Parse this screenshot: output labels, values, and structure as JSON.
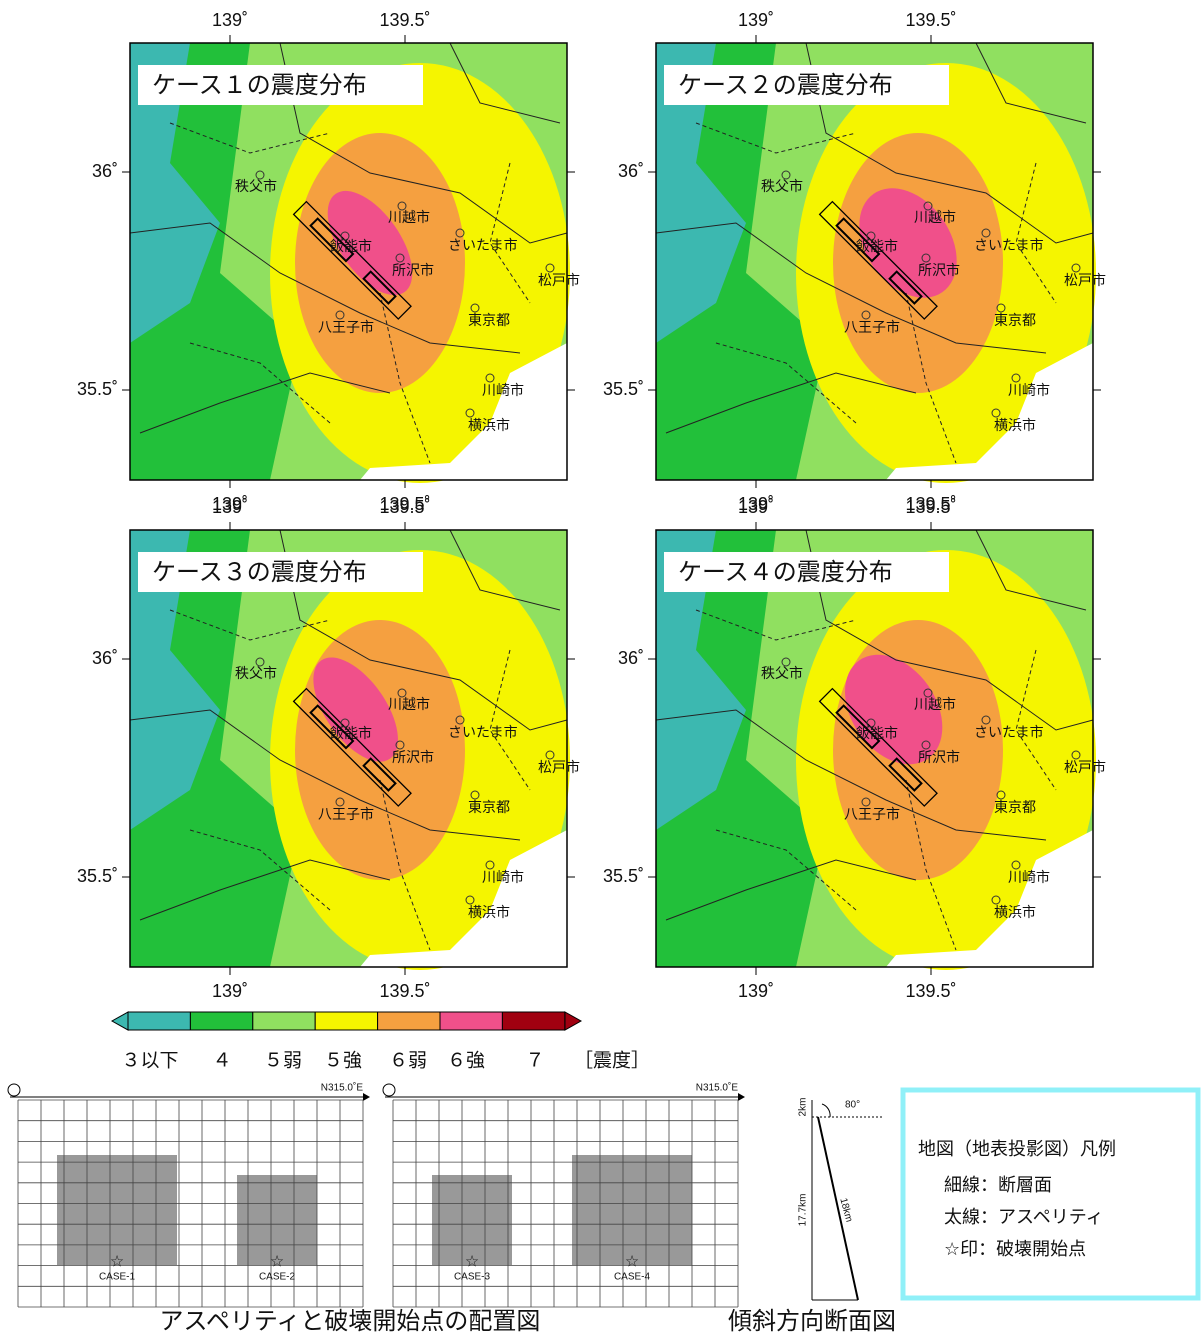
{
  "panels": [
    {
      "title": "ケース１の震度分布"
    },
    {
      "title": "ケース２の震度分布"
    },
    {
      "title": "ケース３の震度分布"
    },
    {
      "title": "ケース４の震度分布"
    }
  ],
  "axes": {
    "x_ticks": [
      "139˚",
      "139.5˚"
    ],
    "y_ticks": [
      "36˚",
      "35.5˚"
    ]
  },
  "cities": [
    "秩父市",
    "川越市",
    "飯能市",
    "さいたま市",
    "所沢市",
    "松戸市",
    "東京都",
    "八王子市",
    "川崎市",
    "横浜市"
  ],
  "colorbar": {
    "labels": [
      "３以下",
      "４",
      "５弱",
      "５強",
      "６弱",
      "６強",
      "７"
    ],
    "colors": [
      "#3cb8b0",
      "#22c03a",
      "#90e060",
      "#f5f500",
      "#f5a040",
      "#f0508a",
      "#a00010"
    ],
    "unit": "［震度］"
  },
  "asperity_diagram": {
    "strike": "N315.0˚E",
    "cases": [
      "CASE-1",
      "CASE-2",
      "CASE-3",
      "CASE-4"
    ],
    "caption": "アスペリティと破壊開始点の配置図"
  },
  "cross_section": {
    "depth": "2km",
    "dip": "80°",
    "height": "17.7km",
    "width": "18km",
    "caption": "傾斜方向断面図"
  },
  "legend": {
    "title": "地図（地表投影図）凡例",
    "items": [
      "細線：断層面",
      "太線：アスペリティ",
      "☆印：破壊開始点"
    ]
  }
}
